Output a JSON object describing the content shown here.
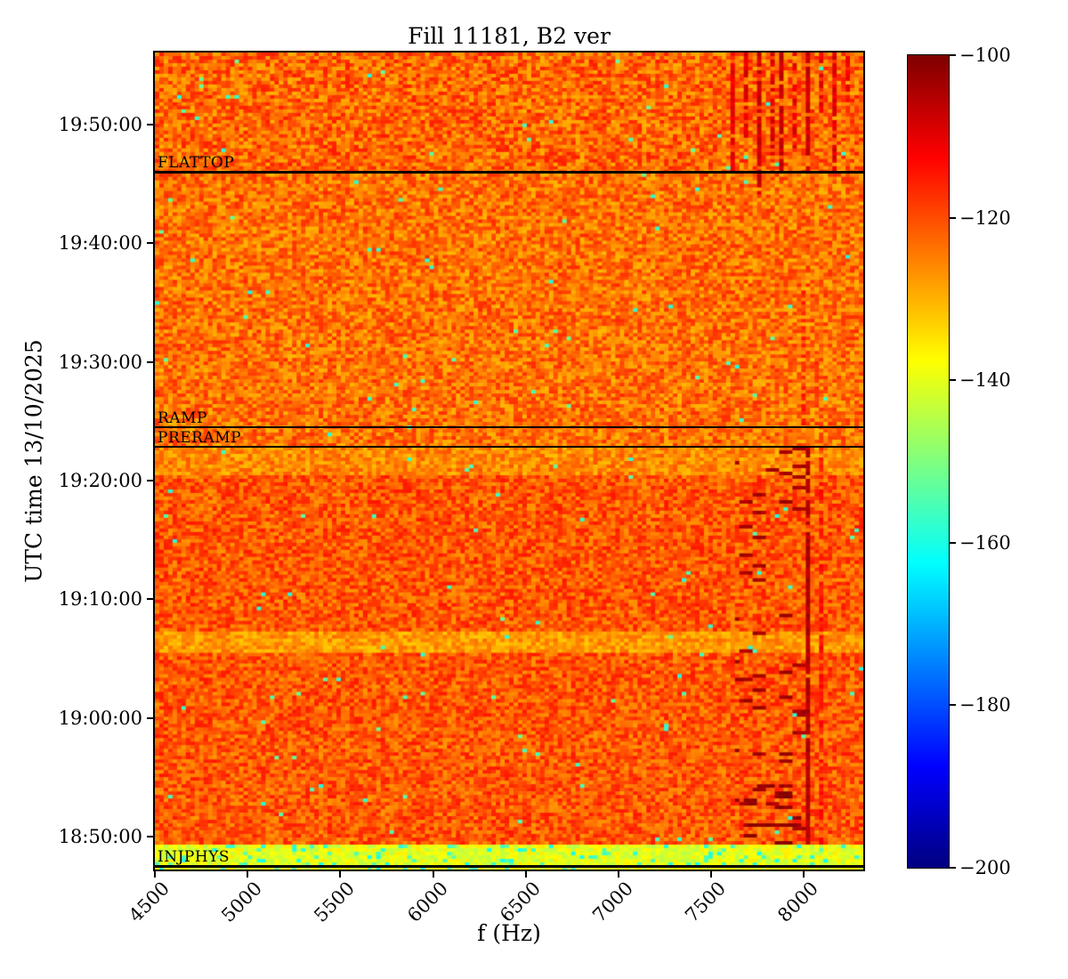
{
  "figure": {
    "title": "Fill 11181, B2 ver"
  },
  "chart_data": {
    "type": "heatmap",
    "title": "Fill 11181, B2 ver",
    "xlabel": "f (Hz)",
    "ylabel": "UTC time 13/10/2025",
    "xlim": [
      4500,
      8320
    ],
    "x_ticks": [
      4500,
      5000,
      5500,
      6000,
      6500,
      7000,
      7500,
      8000
    ],
    "ylim": [
      "18:47:13",
      "19:56:05"
    ],
    "y_ticks": [
      "19:50:00",
      "19:40:00",
      "19:30:00",
      "19:20:00",
      "19:10:00",
      "19:00:00",
      "18:50:00"
    ],
    "grid": false,
    "legend": "none",
    "colorbar": {
      "colormap": "jet",
      "vmin": -200,
      "vmax": -100,
      "ticks": [
        -100,
        -120,
        -140,
        -160,
        -180,
        -200
      ],
      "position": "right"
    },
    "annotations": [
      {
        "label": "FLATTOP",
        "time": "19:46:00"
      },
      {
        "label": "RAMP",
        "time": "19:24:30"
      },
      {
        "label": "PRERAMP",
        "time": "19:22:51"
      },
      {
        "label": "INJPHYS",
        "time": "18:47:30"
      }
    ],
    "signal_model": {
      "description": "Spectrogram of beam signal vs frequency (Hz) and UTC time; power in dB mapped with jet colormap from -200 to -100 dB.",
      "grid_cells": {
        "cols": 160,
        "rows": 230
      },
      "regions": [
        {
          "name": "background-noise-floor",
          "t": [
            "18:49:15",
            "19:56:05"
          ],
          "f": [
            4500,
            8320
          ],
          "base": -123.5,
          "noise": 7
        },
        {
          "name": "flattop-upper",
          "t": [
            "19:46:00",
            "19:56:05"
          ],
          "f": [
            4500,
            8320
          ],
          "base": -122.5,
          "noise": 7.5
        },
        {
          "name": "pre-ramp-body",
          "t": [
            "18:49:15",
            "19:22:51"
          ],
          "f": [
            4500,
            8320
          ],
          "base": -121.0,
          "noise": 6.5
        },
        {
          "name": "light-band-below-preramp",
          "t": [
            "19:20:30",
            "19:22:51"
          ],
          "f": [
            4500,
            8320
          ],
          "base": -126.0,
          "noise": 5.5
        },
        {
          "name": "light-band-1906",
          "t": [
            "19:05:30",
            "19:07:10"
          ],
          "f": [
            4500,
            8320
          ],
          "base": -127.5,
          "noise": 5
        },
        {
          "name": "injphys-green-band",
          "t": [
            "18:47:13",
            "18:49:15"
          ],
          "f": [
            4500,
            8320
          ],
          "base": -140.0,
          "noise": 4.5
        }
      ],
      "vlines": [
        {
          "f": 7620,
          "w": 14,
          "t": [
            "19:46:00",
            "19:56:05"
          ],
          "value": -111,
          "prob": 0.75
        },
        {
          "f": 7690,
          "w": 12,
          "t": [
            "19:49:00",
            "19:56:05"
          ],
          "value": -110,
          "prob": 0.7
        },
        {
          "f": 7755,
          "w": 14,
          "t": [
            "19:44:00",
            "19:56:05"
          ],
          "value": -108,
          "prob": 0.8
        },
        {
          "f": 7820,
          "w": 12,
          "t": [
            "19:47:30",
            "19:56:05"
          ],
          "value": -109,
          "prob": 0.7
        },
        {
          "f": 7885,
          "w": 14,
          "t": [
            "19:46:00",
            "19:56:05"
          ],
          "value": -107,
          "prob": 0.85
        },
        {
          "f": 7950,
          "w": 12,
          "t": [
            "19:48:00",
            "19:56:05"
          ],
          "value": -110,
          "prob": 0.65
        },
        {
          "f": 8020,
          "w": 14,
          "t": [
            "19:46:00",
            "19:56:05"
          ],
          "value": -108,
          "prob": 0.8
        },
        {
          "f": 8090,
          "w": 12,
          "t": [
            "19:50:30",
            "19:56:05"
          ],
          "value": -111,
          "prob": 0.6
        },
        {
          "f": 8160,
          "w": 12,
          "t": [
            "19:46:00",
            "19:56:05"
          ],
          "value": -110,
          "prob": 0.7
        },
        {
          "f": 8240,
          "w": 12,
          "t": [
            "19:52:00",
            "19:56:05"
          ],
          "value": -112,
          "prob": 0.6
        },
        {
          "f": 7990,
          "w": 16,
          "t": [
            "19:24:30",
            "19:36:00"
          ],
          "value": -115,
          "prob": 0.55
        },
        {
          "f": 8060,
          "w": 12,
          "t": [
            "19:24:30",
            "19:31:00"
          ],
          "value": -117,
          "prob": 0.4
        },
        {
          "f": 8020,
          "w": 14,
          "t": [
            "18:49:15",
            "19:22:51"
          ],
          "value": -105,
          "prob": 0.95
        },
        {
          "f": 8105,
          "w": 12,
          "t": [
            "18:49:15",
            "19:22:51"
          ],
          "value": -114,
          "prob": 0.55
        }
      ],
      "speckles": [
        {
          "name": "beam-line-dashes",
          "f": [
            7620,
            8010
          ],
          "t": [
            "18:49:15",
            "19:22:51"
          ],
          "prob": 0.055,
          "value": -104,
          "dash": 3
        },
        {
          "name": "beam-line-dashes-dense",
          "f": [
            7680,
            7980
          ],
          "t": [
            "18:49:15",
            "18:54:30"
          ],
          "prob": 0.22,
          "value": -102,
          "dash": 4
        },
        {
          "name": "cyan-dropout-dots",
          "f": [
            4500,
            8320
          ],
          "t": [
            "18:49:15",
            "19:56:05"
          ],
          "prob": 0.004,
          "value": -156,
          "dash": 1
        },
        {
          "name": "injphys-cyan-dots",
          "f": [
            4500,
            8320
          ],
          "t": [
            "18:47:13",
            "18:49:15"
          ],
          "prob": 0.08,
          "value": -157,
          "dash": 1
        }
      ]
    }
  }
}
